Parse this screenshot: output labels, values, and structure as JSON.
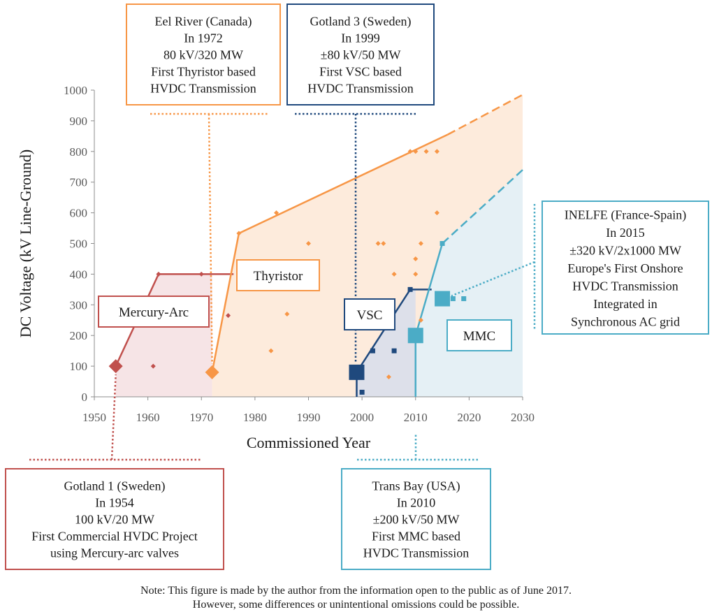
{
  "chart_data": {
    "type": "scatter",
    "xlabel": "Commissioned Year",
    "ylabel": "DC Voltage (kV Line-Ground)",
    "xlim": [
      1950,
      2030
    ],
    "ylim": [
      0,
      1000
    ],
    "x_ticks": [
      "1950",
      "1960",
      "1970",
      "1980",
      "1990",
      "2000",
      "2010",
      "2020",
      "2030"
    ],
    "y_ticks": [
      "0",
      "100",
      "200",
      "300",
      "400",
      "500",
      "600",
      "700",
      "800",
      "900",
      "1000"
    ],
    "grid": false,
    "series": [
      {
        "name": "Mercury-Arc",
        "color": "#c0504d",
        "fill": "#f6e4e6",
        "envelope": [
          [
            1954,
            100
          ],
          [
            1962,
            400
          ],
          [
            1976,
            400
          ]
        ],
        "milestone": [
          1954,
          100
        ],
        "points": [
          [
            1961,
            100
          ],
          [
            1962,
            400
          ],
          [
            1970,
            400
          ],
          [
            1975,
            265
          ]
        ]
      },
      {
        "name": "Thyristor",
        "color": "#f79646",
        "fill": "#fdebdc",
        "envelope": [
          [
            1972,
            80
          ],
          [
            1977,
            533
          ],
          [
            2016,
            855
          ]
        ],
        "envelope_projected": [
          [
            2016,
            855
          ],
          [
            2030,
            985
          ]
        ],
        "milestone": [
          1972,
          80
        ],
        "points": [
          [
            1977,
            533
          ],
          [
            1983,
            150
          ],
          [
            1984,
            600
          ],
          [
            1986,
            270
          ],
          [
            1990,
            500
          ],
          [
            2003,
            500
          ],
          [
            2004,
            500
          ],
          [
            2005,
            65
          ],
          [
            2006,
            400
          ],
          [
            2009,
            800
          ],
          [
            2010,
            800
          ],
          [
            2010,
            450
          ],
          [
            2010,
            400
          ],
          [
            2011,
            500
          ],
          [
            2011,
            250
          ],
          [
            2012,
            800
          ],
          [
            2014,
            800
          ],
          [
            2014,
            600
          ]
        ]
      },
      {
        "name": "VSC",
        "color": "#1f497d",
        "fill": "#dde0ea",
        "envelope": [
          [
            1999,
            80
          ],
          [
            2009,
            350
          ],
          [
            2013,
            350
          ]
        ],
        "milestone": [
          1999,
          80
        ],
        "points": [
          [
            2000,
            15
          ],
          [
            2002,
            150
          ],
          [
            2006,
            150
          ],
          [
            2009,
            350
          ]
        ]
      },
      {
        "name": "MMC",
        "color": "#4bacc6",
        "fill": "#e5f0f5",
        "envelope": [
          [
            2010,
            200
          ],
          [
            2015,
            500
          ]
        ],
        "envelope_projected": [
          [
            2015,
            500
          ],
          [
            2030,
            740
          ]
        ],
        "milestones": [
          [
            2010,
            200
          ],
          [
            2015,
            320
          ]
        ],
        "points": [
          [
            2015,
            500
          ],
          [
            2017,
            320
          ],
          [
            2019,
            320
          ]
        ]
      }
    ],
    "region_labels": [
      "Mercury-Arc",
      "Thyristor",
      "VSC",
      "MMC"
    ],
    "annotations": [
      {
        "lines": [
          "Eel River (Canada)",
          "In 1972",
          "80 kV/320 MW",
          "First Thyristor based",
          "HVDC Transmission"
        ],
        "color": "#f79646"
      },
      {
        "lines": [
          "Gotland 3 (Sweden)",
          "In 1999",
          "±80 kV/50 MW",
          "First VSC based",
          "HVDC Transmission"
        ],
        "color": "#1f497d"
      },
      {
        "lines": [
          "INELFE (France-Spain)",
          "In 2015",
          "±320 kV/2x1000 MW",
          "Europe's First Onshore",
          "HVDC Transmission",
          "Integrated in",
          "Synchronous AC grid"
        ],
        "color": "#4bacc6"
      },
      {
        "lines": [
          "Gotland 1 (Sweden)",
          "In 1954",
          "100 kV/20 MW",
          "First Commercial HVDC Project",
          "using Mercury-arc valves"
        ],
        "color": "#c0504d"
      },
      {
        "lines": [
          "Trans Bay (USA)",
          "In 2010",
          "±200 kV/50 MW",
          "First MMC based",
          "HVDC Transmission"
        ],
        "color": "#4bacc6"
      }
    ]
  },
  "note": {
    "line1": "Note: This figure is made by the author from the information open to the public as of June 2017.",
    "line2": "However, some differences or unintentional omissions could be possible."
  }
}
